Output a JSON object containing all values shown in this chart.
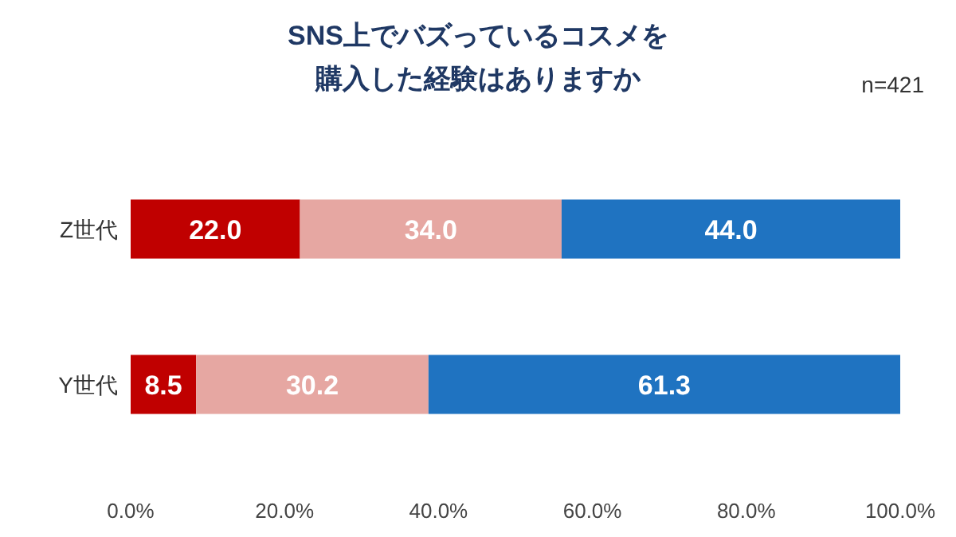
{
  "chart_data": {
    "type": "bar",
    "orientation": "horizontal",
    "stacked": true,
    "title": "SNS上でバズっているコスメを",
    "subtitle": "購入した経験はありますか",
    "annotations": [
      "n=421"
    ],
    "categories": [
      "Z世代",
      "Y世代"
    ],
    "series": [
      {
        "color": "#c00000",
        "values": [
          22.0,
          8.5
        ],
        "value_labels": [
          "22.0",
          "8.5"
        ]
      },
      {
        "color": "#e6a7a2",
        "values": [
          34.0,
          30.2
        ],
        "value_labels": [
          "34.0",
          "30.2"
        ]
      },
      {
        "color": "#1f73c1",
        "values": [
          44.0,
          61.3
        ],
        "value_labels": [
          "44.0",
          "61.3"
        ]
      }
    ],
    "xlim": [
      0,
      100
    ],
    "xticks": [
      {
        "value": 0,
        "label": "0.0%"
      },
      {
        "value": 20,
        "label": "20.0%"
      },
      {
        "value": 40,
        "label": "40.0%"
      },
      {
        "value": 60,
        "label": "60.0%"
      },
      {
        "value": 80,
        "label": "80.0%"
      },
      {
        "value": 100,
        "label": "100.0%"
      }
    ],
    "grid": false
  }
}
